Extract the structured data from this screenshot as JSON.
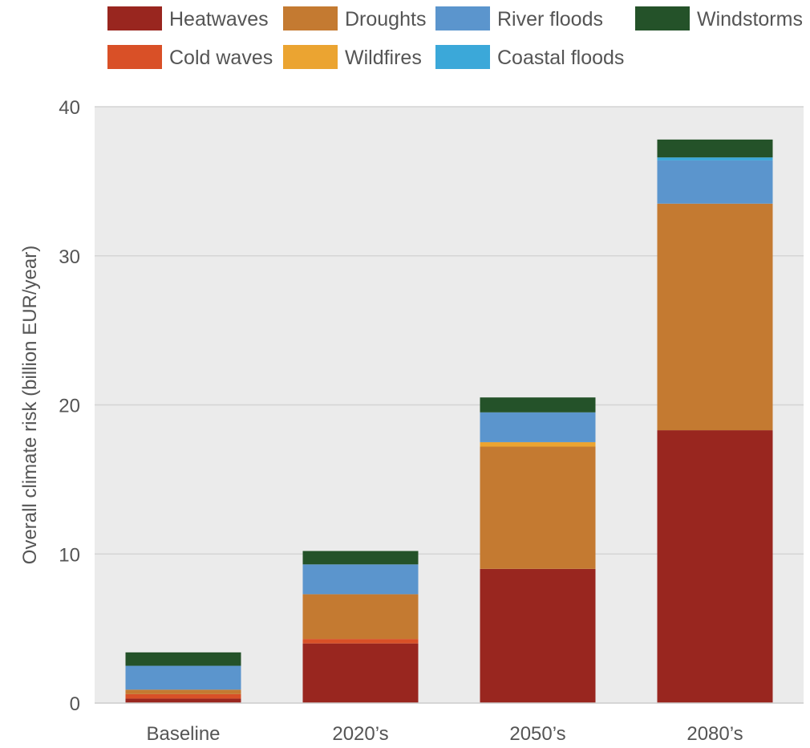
{
  "chart_data": {
    "type": "bar",
    "stacked": true,
    "categories": [
      "Baseline",
      "2020’s",
      "2050’s",
      "2080’s"
    ],
    "ylabel": "Overall climate risk (billion EUR/year)",
    "xlabel": "",
    "ylim": [
      0,
      40
    ],
    "yticks": [
      "0",
      "10",
      "20",
      "30",
      "40"
    ],
    "grid": true,
    "legend_position": "top",
    "colors": {
      "plot_background": "#ebebeb",
      "gridline": "#d4d4d4",
      "tick_label": "#555555"
    },
    "series": [
      {
        "name": "Heatwaves",
        "color": "#99261f",
        "values": [
          0.3,
          4.0,
          9.0,
          18.3
        ]
      },
      {
        "name": "Cold waves",
        "color": "#d95027",
        "values": [
          0.3,
          0.3,
          0.0,
          0.0
        ]
      },
      {
        "name": "Droughts",
        "color": "#c47a31",
        "values": [
          0.3,
          3.0,
          8.2,
          15.2
        ]
      },
      {
        "name": "Wildfires",
        "color": "#eba431",
        "values": [
          0.0,
          0.0,
          0.3,
          0.0
        ]
      },
      {
        "name": "River floods",
        "color": "#5b95cd",
        "values": [
          1.6,
          2.0,
          2.0,
          2.9
        ]
      },
      {
        "name": "Coastal floods",
        "color": "#3ba8d9",
        "values": [
          0.0,
          0.0,
          0.0,
          0.2
        ]
      },
      {
        "name": "Windstorms",
        "color": "#245229",
        "values": [
          0.9,
          0.9,
          1.0,
          1.2
        ]
      }
    ],
    "legend_order": [
      "Heatwaves",
      "Droughts",
      "River floods",
      "Windstorms",
      "Cold waves",
      "Wildfires",
      "Coastal floods"
    ]
  }
}
